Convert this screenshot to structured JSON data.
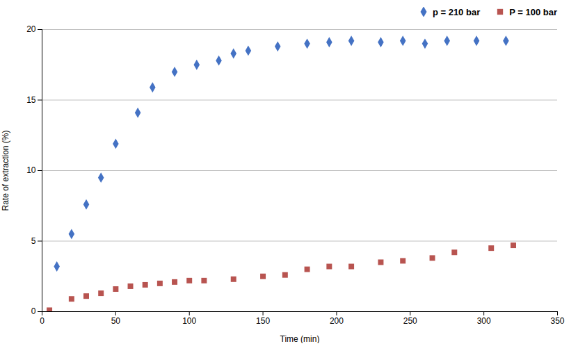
{
  "chart_data": {
    "type": "scatter",
    "xlabel": "Time (min)",
    "ylabel": "Rate of extraction (%)",
    "xlim": [
      0,
      350
    ],
    "ylim": [
      0,
      20
    ],
    "xticks": [
      0,
      50,
      100,
      150,
      200,
      250,
      300,
      350
    ],
    "yticks": [
      0,
      5,
      10,
      15,
      20
    ],
    "grid": "y",
    "legend": "right",
    "series": [
      {
        "name": "p = 210 bar",
        "color": "#4472c4",
        "marker": "diamond",
        "x": [
          10,
          20,
          30,
          40,
          50,
          65,
          75,
          90,
          105,
          120,
          130,
          140,
          160,
          180,
          195,
          210,
          230,
          245,
          260,
          275,
          295,
          315
        ],
        "values": [
          3.2,
          5.5,
          7.6,
          9.5,
          11.9,
          14.1,
          15.9,
          17.0,
          17.5,
          17.8,
          18.3,
          18.5,
          18.8,
          19.0,
          19.1,
          19.2,
          19.1,
          19.2,
          19.0,
          19.2,
          19.2,
          19.2
        ]
      },
      {
        "name": "P = 100 bar",
        "color": "#b85450",
        "marker": "square",
        "x": [
          5,
          20,
          30,
          40,
          50,
          60,
          70,
          80,
          90,
          100,
          110,
          130,
          150,
          165,
          180,
          195,
          210,
          230,
          245,
          265,
          280,
          305,
          320
        ],
        "values": [
          0.1,
          0.9,
          1.1,
          1.3,
          1.6,
          1.8,
          1.9,
          2.0,
          2.1,
          2.2,
          2.2,
          2.3,
          2.5,
          2.6,
          3.0,
          3.2,
          3.2,
          3.5,
          3.6,
          3.8,
          4.2,
          4.5,
          4.7
        ]
      }
    ]
  }
}
